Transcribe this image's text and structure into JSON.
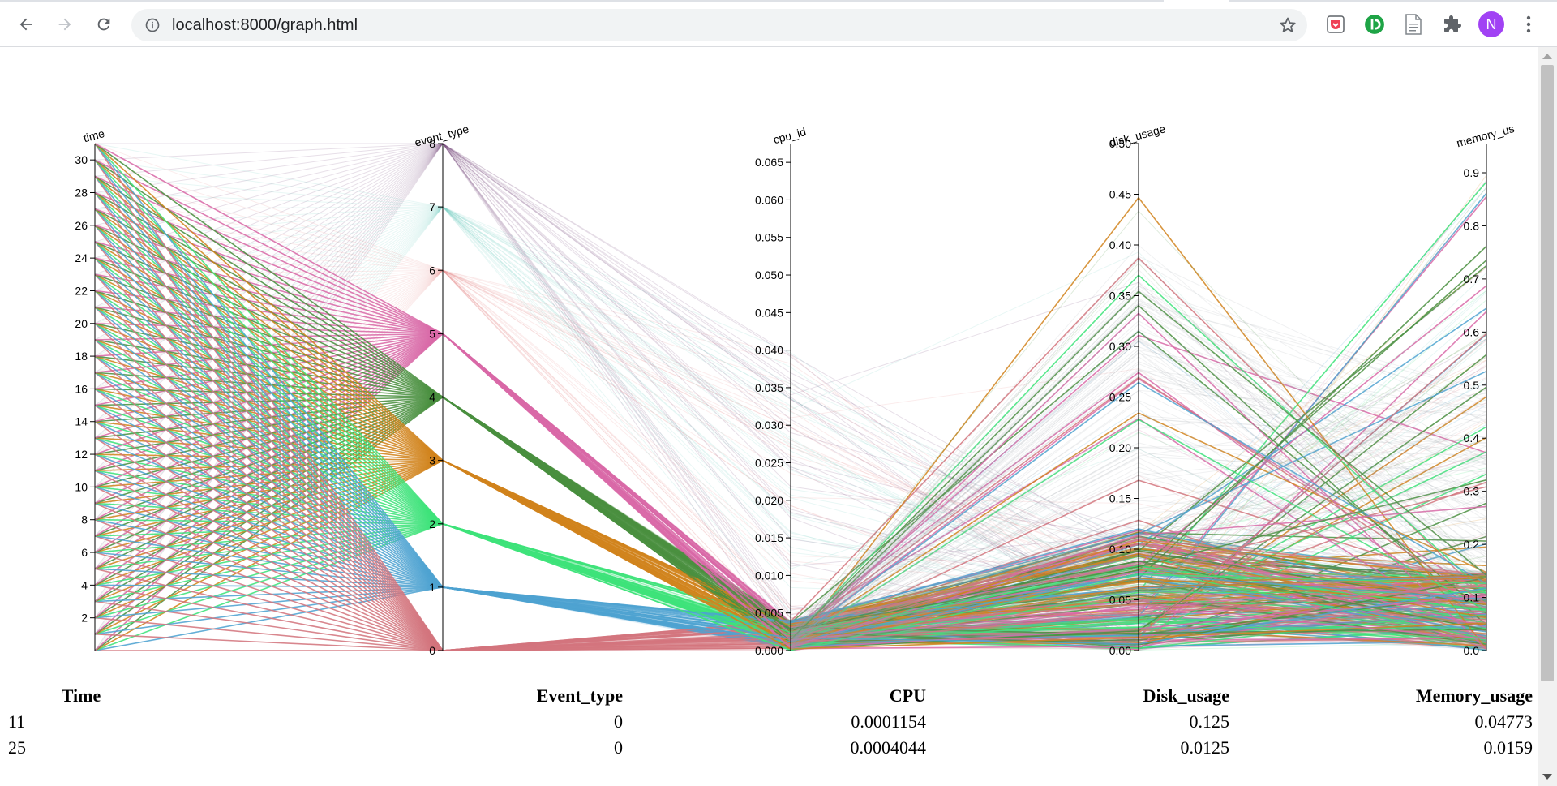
{
  "browser": {
    "url": "localhost:8000/graph.html",
    "avatar_letter": "N",
    "icons": {
      "back": "arrow-left",
      "forward": "arrow-right",
      "reload": "reload",
      "info": "info-circle",
      "bookmark": "star-outline",
      "ext1": "pocket-like-red",
      "ext2": "green-circle-d",
      "ext3": "document",
      "ext4": "puzzle",
      "menu": "vertical-dots"
    }
  },
  "chart_data": {
    "type": "parallel-coordinates",
    "axes": [
      {
        "name": "time",
        "ticks": [
          "2",
          "4",
          "6",
          "8",
          "10",
          "12",
          "14",
          "16",
          "18",
          "20",
          "22",
          "24",
          "26",
          "28",
          "30"
        ],
        "domain": [
          0,
          31
        ]
      },
      {
        "name": "event_type",
        "ticks": [
          "0",
          "1",
          "2",
          "3",
          "4",
          "5",
          "6",
          "7",
          "8"
        ],
        "domain": [
          0,
          8
        ]
      },
      {
        "name": "cpu_id",
        "ticks": [
          "0.000",
          "0.005",
          "0.010",
          "0.015",
          "0.020",
          "0.025",
          "0.030",
          "0.035",
          "0.040",
          "0.045",
          "0.050",
          "0.055",
          "0.060",
          "0.065"
        ],
        "domain": [
          0,
          0.0675
        ]
      },
      {
        "name": "disk_usage",
        "ticks": [
          "0.00",
          "0.05",
          "0.10",
          "0.15",
          "0.20",
          "0.25",
          "0.30",
          "0.35",
          "0.40",
          "0.45",
          "0.50"
        ],
        "domain": [
          0,
          0.5
        ]
      },
      {
        "name": "memory_us",
        "ticks": [
          "0.0",
          "0.1",
          "0.2",
          "0.3",
          "0.4",
          "0.5",
          "0.6",
          "0.7",
          "0.8",
          "0.9"
        ],
        "domain": [
          0,
          0.955
        ]
      }
    ],
    "event_type_colors": {
      "0": "#d4757e",
      "1": "#4fa3d1",
      "2": "#3ee37a",
      "3": "#d1841d",
      "4": "#4a8f3f",
      "5": "#d96aa8",
      "6": "#e79496",
      "7": "#7fd3c8",
      "8": "#7b4f7e"
    },
    "time_tick_colors": [
      "#4fa3d1",
      "#4fa3d1",
      "#d4757e",
      "#8c8c8c",
      "#d4757e",
      "#4fa3d1",
      "#3ee37a",
      "#d1841d",
      "#4a8f3f",
      "#d96aa8",
      "#d4757e",
      "#4fa3d1",
      "#8c8c8c",
      "#d4757e",
      "#4fa3d1"
    ]
  },
  "table": {
    "headers": [
      "Time",
      "Event_type",
      "CPU",
      "Disk_usage",
      "Memory_usage"
    ],
    "rows": [
      [
        "11",
        "0",
        "0.0001154",
        "0.125",
        "0.04773"
      ],
      [
        "25",
        "0",
        "0.0004044",
        "0.0125",
        "0.0159"
      ]
    ]
  }
}
